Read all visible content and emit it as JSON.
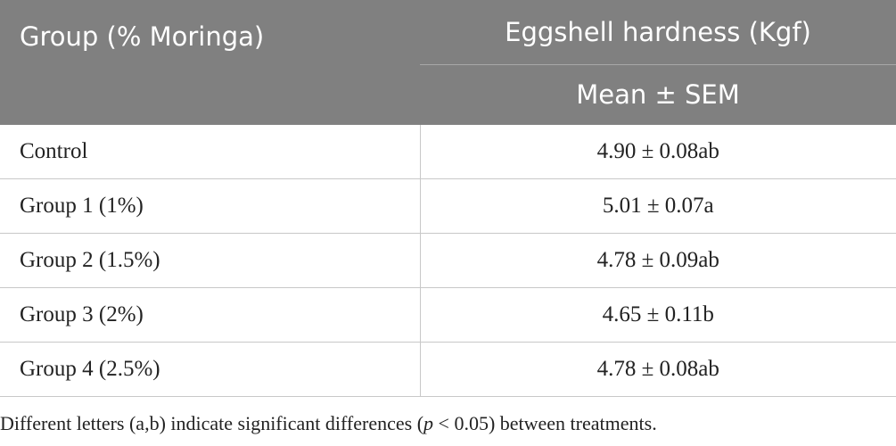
{
  "table": {
    "header": {
      "group": "Group (% Moringa)",
      "measure": "Eggshell hardness (Kgf)",
      "stat": "Mean ± SEM"
    },
    "rows": [
      [
        "Control",
        "4.90 ± 0.08ab"
      ],
      [
        "Group 1 (1%)",
        "5.01 ± 0.07a"
      ],
      [
        "Group 2 (1.5%)",
        "4.78 ± 0.09ab"
      ],
      [
        "Group 3 (2%)",
        "4.65 ± 0.11b"
      ],
      [
        "Group 4 (2.5%)",
        "4.78 ± 0.08ab"
      ]
    ]
  },
  "footnote": [
    "Different letters (a,b) indicate significant differences (",
    "p",
    " < 0.05) between treatments."
  ]
}
